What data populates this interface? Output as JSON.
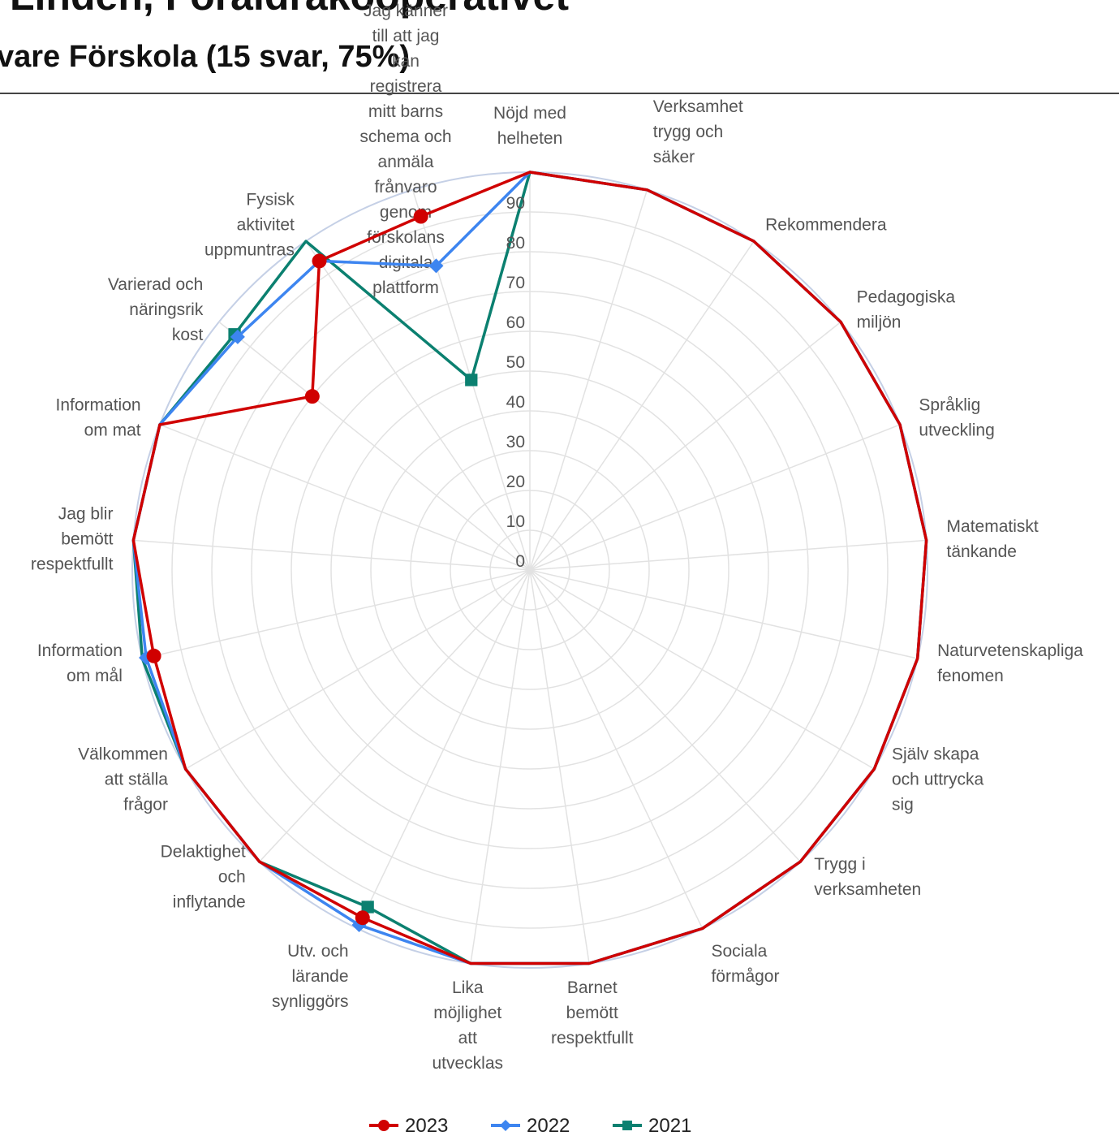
{
  "chart_data": {
    "type": "radar",
    "title": "Linden, Föräldrakooperativet",
    "subtitle": "vare Förskola  (15 svar, 75%)",
    "categories": [
      "Nöjd med helheten",
      "Verksamhet trygg och säker",
      "Rekommendera",
      "Pedagogiska miljön",
      "Språklig utveckling",
      "Matematiskt tänkande",
      "Naturvetenskapliga fenomen",
      "Själv skapa och uttrycka sig",
      "Trygg i verksamheten",
      "Sociala förmågor",
      "Barnet bemött respektfullt",
      "Lika möjlighet att utvecklas",
      "Utv. och lärande synliggörs",
      "Delaktighet och inflytande",
      "Välkommen att ställa frågor",
      "Information om mål",
      "Jag blir bemött respektfullt",
      "Information om mat",
      "Varierad och näringsrik kost",
      "Fysisk aktivitet uppmuntras",
      "Jag känner till att jag kan registrera mitt barns schema och anmäla frånvaro genom förskolans digitala plattform"
    ],
    "series": [
      {
        "name": "2021",
        "color": "#0b8070",
        "marker": "square",
        "values": [
          100,
          100,
          100,
          100,
          100,
          100,
          100,
          100,
          100,
          100,
          100,
          100,
          94,
          100,
          100,
          100,
          100,
          100,
          95,
          100,
          50
        ]
      },
      {
        "name": "2022",
        "color": "#3d85f0",
        "marker": "diamond",
        "values": [
          100,
          100,
          100,
          100,
          100,
          100,
          100,
          100,
          100,
          100,
          100,
          100,
          99,
          100,
          100,
          99,
          100,
          100,
          94,
          94,
          80
        ]
      },
      {
        "name": "2023",
        "color": "#d00000",
        "marker": "circle",
        "values": [
          100,
          100,
          100,
          100,
          100,
          100,
          100,
          100,
          100,
          100,
          100,
          100,
          97,
          100,
          100,
          97,
          100,
          100,
          70,
          94,
          93
        ]
      }
    ],
    "ylim": [
      0,
      100
    ],
    "yticks": [
      0,
      10,
      20,
      30,
      40,
      50,
      60,
      70,
      80,
      90
    ],
    "grid": true,
    "legend": "bottom"
  }
}
